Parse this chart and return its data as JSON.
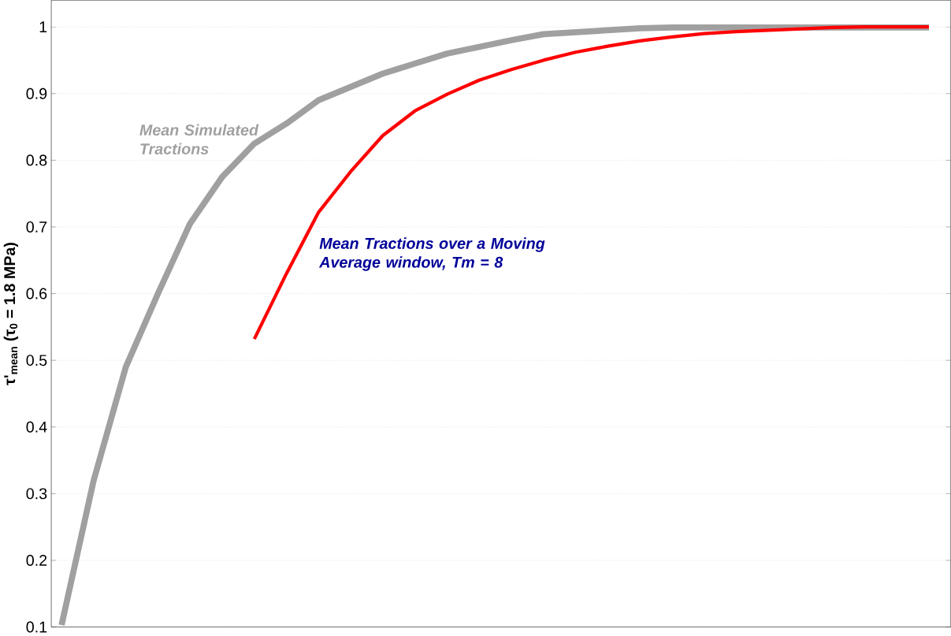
{
  "chart_data": {
    "type": "line",
    "ylabel": "τ'$_{mean}$ (τ$_{0}$ = 1.8 MPa)",
    "categories": [
      null,
      null,
      null,
      null,
      null,
      null,
      null,
      null,
      null,
      null,
      null,
      null,
      null,
      null,
      null,
      null,
      null,
      null,
      null,
      null,
      null,
      null,
      null,
      null,
      null,
      null,
      null,
      null
    ],
    "ylim": [
      0.1,
      1.04
    ],
    "yticks": [
      0.1,
      0.2,
      0.3,
      0.4,
      0.5,
      0.6,
      0.7,
      0.8,
      0.9,
      1
    ],
    "grid": "y",
    "marker": "none",
    "line_style": "solid",
    "series": [
      {
        "name": "Mean Simulated Tractions",
        "color": "#a0a0a0",
        "values": [
          0.103,
          0.32,
          0.49,
          0.6,
          0.705,
          0.775,
          0.825,
          0.855,
          0.89,
          0.91,
          0.93,
          0.945,
          0.96,
          0.97,
          0.98,
          0.989,
          0.992,
          0.995,
          0.998,
          0.999,
          0.999,
          0.999,
          0.999,
          0.999,
          0.999,
          0.999,
          0.999,
          0.999
        ]
      },
      {
        "name": "Mean Tractions over a Moving Average window, Tm = 8",
        "color": "#ff0000",
        "values": [
          null,
          null,
          null,
          null,
          null,
          null,
          0.532,
          0.63,
          0.722,
          0.783,
          0.837,
          0.874,
          0.899,
          0.92,
          0.936,
          0.95,
          0.962,
          0.971,
          0.979,
          0.985,
          0.99,
          0.993,
          0.995,
          0.997,
          0.999,
          1.0,
          1.0,
          1.0
        ]
      }
    ]
  }
}
